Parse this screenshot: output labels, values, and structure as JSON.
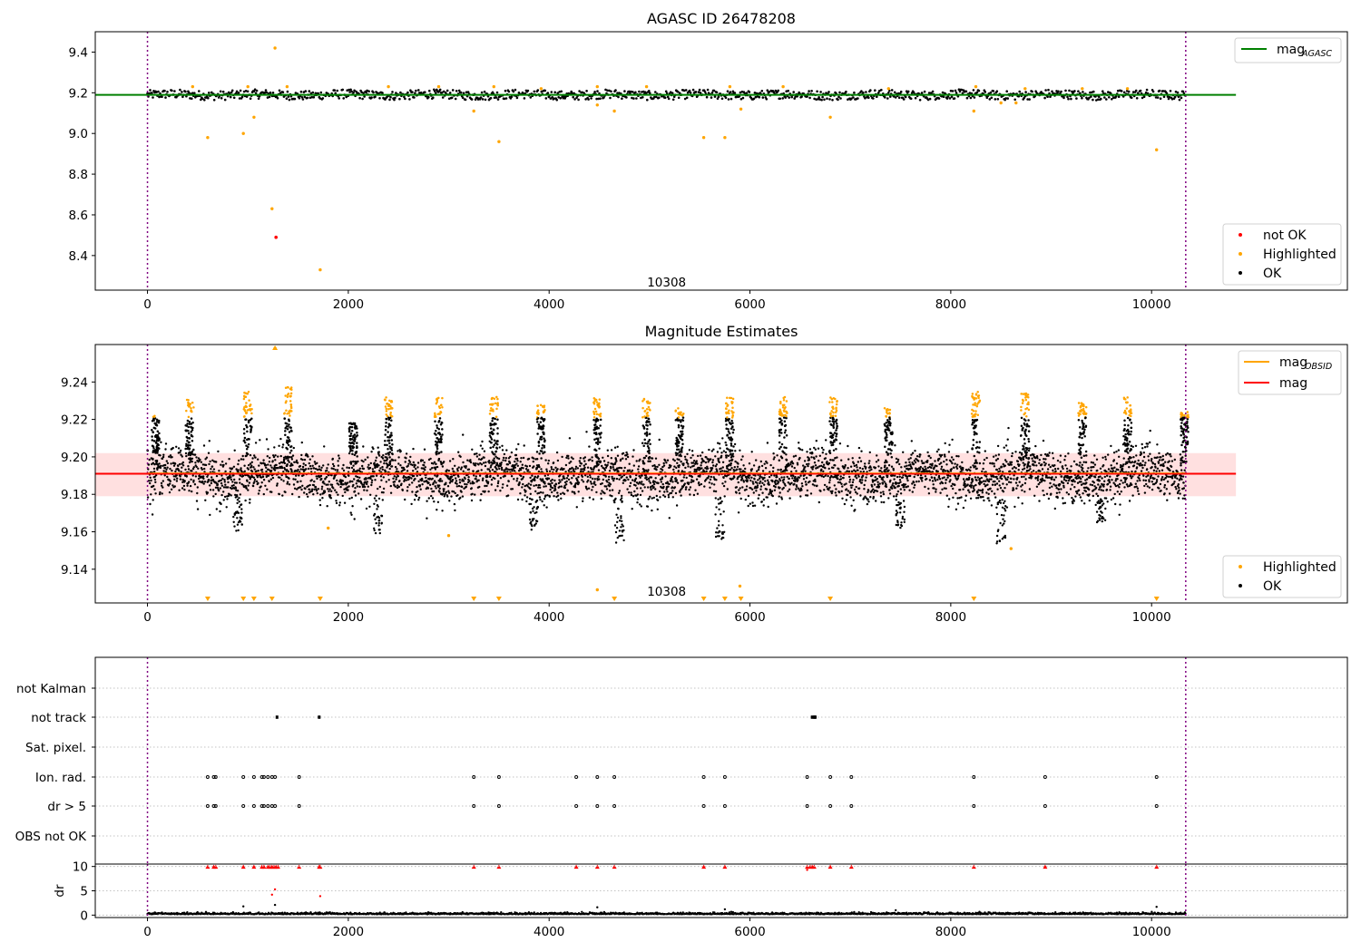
{
  "chart_data": [
    {
      "type": "scatter",
      "title": "AGASC ID 26478208",
      "xlim": [
        -520,
        11950
      ],
      "ylim": [
        8.23,
        9.5
      ],
      "xticks": [
        0,
        2000,
        4000,
        6000,
        8000,
        10000
      ],
      "yticks": [
        8.4,
        8.6,
        8.8,
        9.0,
        9.2,
        9.4
      ],
      "xticklabels": [
        "0",
        "2000",
        "4000",
        "6000",
        "8000",
        "10000"
      ],
      "yticklabels": [
        "8.4",
        "8.6",
        "8.8",
        "9.0",
        "9.2",
        "9.4"
      ],
      "obs_boundaries": [
        0,
        10340
      ],
      "obs_label": {
        "text": "10308",
        "x": 5170,
        "y": 8.27
      },
      "mag_line": {
        "name": "magAGASC",
        "y": 9.19,
        "x": [
          -520,
          10840
        ],
        "color": "#008000"
      },
      "ok_band": {
        "center": 9.19,
        "amplitude": 0.025
      },
      "highlighted": [
        [
          600,
          8.98
        ],
        [
          955,
          9.0
        ],
        [
          1060,
          9.08
        ],
        [
          1240,
          8.63
        ],
        [
          1270,
          9.42
        ],
        [
          1720,
          8.33
        ],
        [
          3250,
          9.11
        ],
        [
          3500,
          8.96
        ],
        [
          4480,
          9.14
        ],
        [
          4650,
          9.11
        ],
        [
          5540,
          8.98
        ],
        [
          5750,
          8.98
        ],
        [
          5910,
          9.12
        ],
        [
          6800,
          9.08
        ],
        [
          8230,
          9.11
        ],
        [
          8500,
          9.15
        ],
        [
          8650,
          9.15
        ],
        [
          10050,
          8.92
        ],
        [
          450,
          9.23
        ],
        [
          1000,
          9.23
        ],
        [
          1390,
          9.23
        ],
        [
          2400,
          9.23
        ],
        [
          2900,
          9.23
        ],
        [
          3450,
          9.23
        ],
        [
          3920,
          9.22
        ],
        [
          4480,
          9.23
        ],
        [
          4970,
          9.23
        ],
        [
          5800,
          9.23
        ],
        [
          6330,
          9.23
        ],
        [
          7380,
          9.22
        ],
        [
          8250,
          9.23
        ],
        [
          8740,
          9.22
        ],
        [
          9310,
          9.22
        ],
        [
          9760,
          9.22
        ]
      ],
      "not_ok": [
        [
          1280,
          8.49
        ]
      ],
      "legend_top": [
        {
          "label": "mag",
          "sub": "AGASC",
          "color": "#008000"
        }
      ],
      "legend_bottom": [
        {
          "label": "not OK",
          "color": "#ff0000"
        },
        {
          "label": "Highlighted",
          "color": "#ffa500"
        },
        {
          "label": "OK",
          "color": "#000000"
        }
      ]
    },
    {
      "type": "scatter",
      "title": "Magnitude Estimates",
      "xlim": [
        -520,
        11950
      ],
      "ylim": [
        9.122,
        9.26
      ],
      "xticks": [
        0,
        2000,
        4000,
        6000,
        8000,
        10000
      ],
      "yticks": [
        9.14,
        9.16,
        9.18,
        9.2,
        9.22,
        9.24
      ],
      "xticklabels": [
        "0",
        "2000",
        "4000",
        "6000",
        "8000",
        "10000"
      ],
      "yticklabels": [
        "9.14",
        "9.16",
        "9.18",
        "9.20",
        "9.22",
        "9.24"
      ],
      "obs_boundaries": [
        0,
        10340
      ],
      "obs_label": {
        "text": "10308",
        "x": 5170,
        "y": 9.126
      },
      "mean_line": {
        "name": "mag",
        "y": 9.191,
        "x": [
          -520,
          10840
        ],
        "color": "#ff0000"
      },
      "obsid_line": {
        "name": "magOBSID",
        "y": 9.191,
        "x": [
          0,
          10340
        ],
        "color": "#ffa500"
      },
      "band": {
        "low": 9.179,
        "high": 9.202,
        "x": [
          -520,
          10840
        ]
      },
      "ok_band": {
        "center": 9.19,
        "amplitude": 0.012
      },
      "flare_peaks": [
        [
          80,
          9.222
        ],
        [
          420,
          9.231
        ],
        [
          1000,
          9.235
        ],
        [
          1400,
          9.238
        ],
        [
          2050,
          9.218
        ],
        [
          2400,
          9.232
        ],
        [
          2900,
          9.232
        ],
        [
          3450,
          9.232
        ],
        [
          3920,
          9.228
        ],
        [
          4480,
          9.232
        ],
        [
          4970,
          9.232
        ],
        [
          5300,
          9.226
        ],
        [
          5800,
          9.232
        ],
        [
          6330,
          9.232
        ],
        [
          6830,
          9.232
        ],
        [
          7380,
          9.226
        ],
        [
          8250,
          9.235
        ],
        [
          8740,
          9.234
        ],
        [
          9310,
          9.229
        ],
        [
          9760,
          9.232
        ],
        [
          10330,
          9.224
        ]
      ],
      "dips": [
        [
          900,
          9.16
        ],
        [
          2300,
          9.159
        ],
        [
          3850,
          9.161
        ],
        [
          4700,
          9.154
        ],
        [
          5700,
          9.156
        ],
        [
          7500,
          9.162
        ],
        [
          8500,
          9.153
        ],
        [
          9500,
          9.165
        ]
      ],
      "highlighted_extra": [
        [
          1270,
          9.258
        ],
        [
          4480,
          9.129
        ],
        [
          5900,
          9.131
        ],
        [
          8600,
          9.151
        ],
        [
          3000,
          9.158
        ],
        [
          1800,
          9.162
        ]
      ],
      "below_markers": [
        600,
        955,
        1060,
        1240,
        1720,
        3250,
        3500,
        4650,
        5540,
        5750,
        5910,
        6800,
        8230,
        10050
      ],
      "legend_top": [
        {
          "label": "mag",
          "sub": "OBSID",
          "color": "#ffa500"
        },
        {
          "label": "mag",
          "sub": "",
          "color": "#ff0000"
        }
      ],
      "legend_bottom": [
        {
          "label": "Highlighted",
          "color": "#ffa500"
        },
        {
          "label": "OK",
          "color": "#000000"
        }
      ]
    },
    {
      "type": "scatter",
      "title": "",
      "xlim": [
        -520,
        11950
      ],
      "categories": [
        "not Kalman",
        "not track",
        "Sat. pixel.",
        "Ion. rad.",
        "dr > 5",
        "OBS not OK"
      ],
      "obs_boundaries": [
        0,
        10340
      ],
      "flags": {
        "not track": [
          1290,
          1710,
          6620,
          6640,
          6650
        ],
        "Ion. rad.": [
          600,
          660,
          680,
          955,
          1060,
          1140,
          1160,
          1200,
          1240,
          1270,
          1510,
          3250,
          3500,
          4270,
          4480,
          4650,
          5540,
          5750,
          6570,
          6800,
          7010,
          8230,
          8940,
          10050
        ],
        "dr > 5": [
          600,
          660,
          680,
          955,
          1060,
          1140,
          1160,
          1200,
          1240,
          1270,
          1510,
          3250,
          3500,
          4270,
          4480,
          4650,
          5540,
          5750,
          6570,
          6800,
          7010,
          8230,
          8940,
          10050
        ]
      }
    },
    {
      "type": "scatter",
      "title": "",
      "ylabel": "dr",
      "xlim": [
        -520,
        11950
      ],
      "ylim": [
        -0.5,
        10.5
      ],
      "yticks": [
        0,
        5,
        10
      ],
      "yticklabels": [
        "0",
        "5",
        "10"
      ],
      "xticks": [
        0,
        2000,
        4000,
        6000,
        8000,
        10000
      ],
      "xticklabels": [
        "0",
        "2000",
        "4000",
        "6000",
        "8000",
        "10000"
      ],
      "obs_boundaries": [
        0,
        10340
      ],
      "capped_red": [
        600,
        660,
        680,
        955,
        1060,
        1140,
        1160,
        1200,
        1220,
        1240,
        1260,
        1280,
        1300,
        1510,
        1710,
        1720,
        3250,
        3500,
        4270,
        4480,
        4650,
        5540,
        5750,
        6570,
        6600,
        6620,
        6640,
        6800,
        7010,
        8230,
        8940,
        10050
      ],
      "red_mid": [
        [
          1240,
          4.2
        ],
        [
          1270,
          5.3
        ],
        [
          1720,
          3.9
        ],
        [
          6570,
          9.3
        ]
      ],
      "black_spikes": [
        [
          955,
          1.8
        ],
        [
          1270,
          2.1
        ],
        [
          4480,
          1.6
        ],
        [
          10050,
          1.7
        ],
        [
          5750,
          1.2
        ]
      ]
    }
  ]
}
